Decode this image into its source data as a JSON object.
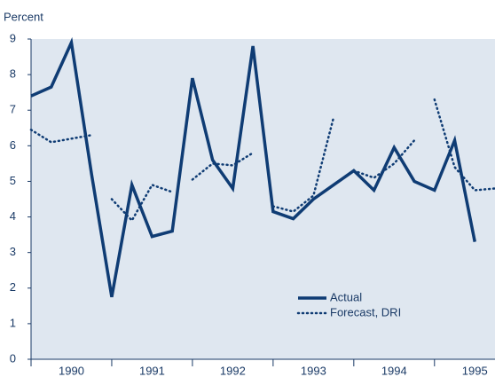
{
  "chart_data": {
    "type": "line",
    "y_label": "Percent",
    "series": [
      {
        "name": "Actual",
        "color": "#0f3c74",
        "style": "solid",
        "x": [
          1990,
          1990.25,
          1990.5,
          1990.75,
          1991,
          1991.25,
          1991.5,
          1991.75,
          1992,
          1992.25,
          1992.5,
          1992.75,
          1993,
          1993.25,
          1993.5,
          1993.75,
          1994,
          1994.25,
          1994.5,
          1994.75,
          1995,
          1995.25,
          1995.5
        ],
        "values": [
          7.4,
          7.65,
          8.9,
          5.2,
          1.75,
          4.9,
          3.45,
          3.6,
          7.9,
          5.6,
          4.8,
          8.8,
          4.15,
          3.95,
          4.5,
          4.9,
          5.3,
          4.75,
          5.95,
          5.0,
          4.75,
          6.15,
          3.3
        ]
      },
      {
        "name": "Forecast, DRI",
        "color": "#0f3c74",
        "style": "dotted",
        "x": [
          1990,
          1990.25,
          1990.5,
          1990.75,
          null,
          1991,
          1991.25,
          1991.5,
          1991.75,
          null,
          1992,
          1992.25,
          1992.5,
          1992.75,
          null,
          1993,
          1993.25,
          1993.5,
          1993.75,
          null,
          1994,
          1994.25,
          1994.5,
          1994.75,
          null,
          1995,
          1995.25,
          1995.5,
          1995.75
        ],
        "values": [
          6.45,
          6.1,
          6.2,
          6.3,
          null,
          4.5,
          3.9,
          4.9,
          4.7,
          null,
          5.05,
          5.5,
          5.45,
          5.8,
          null,
          4.3,
          4.15,
          4.6,
          6.8,
          null,
          5.3,
          5.1,
          5.5,
          6.15,
          null,
          7.3,
          5.4,
          4.75,
          4.8
        ]
      }
    ],
    "xlim": [
      1990,
      1995.75
    ],
    "xticks": [
      {
        "value": 1990.5,
        "label": "1990"
      },
      {
        "value": 1991.5,
        "label": "1991"
      },
      {
        "value": 1992.5,
        "label": "1992"
      },
      {
        "value": 1993.5,
        "label": "1993"
      },
      {
        "value": 1994.5,
        "label": "1994"
      },
      {
        "value": 1995.5,
        "label": "1995"
      }
    ],
    "ylim": [
      0,
      9
    ],
    "yticks": [
      0,
      1,
      2,
      3,
      4,
      5,
      6,
      7,
      8,
      9
    ],
    "background": "#dfe7f0",
    "legend": "lower right"
  }
}
